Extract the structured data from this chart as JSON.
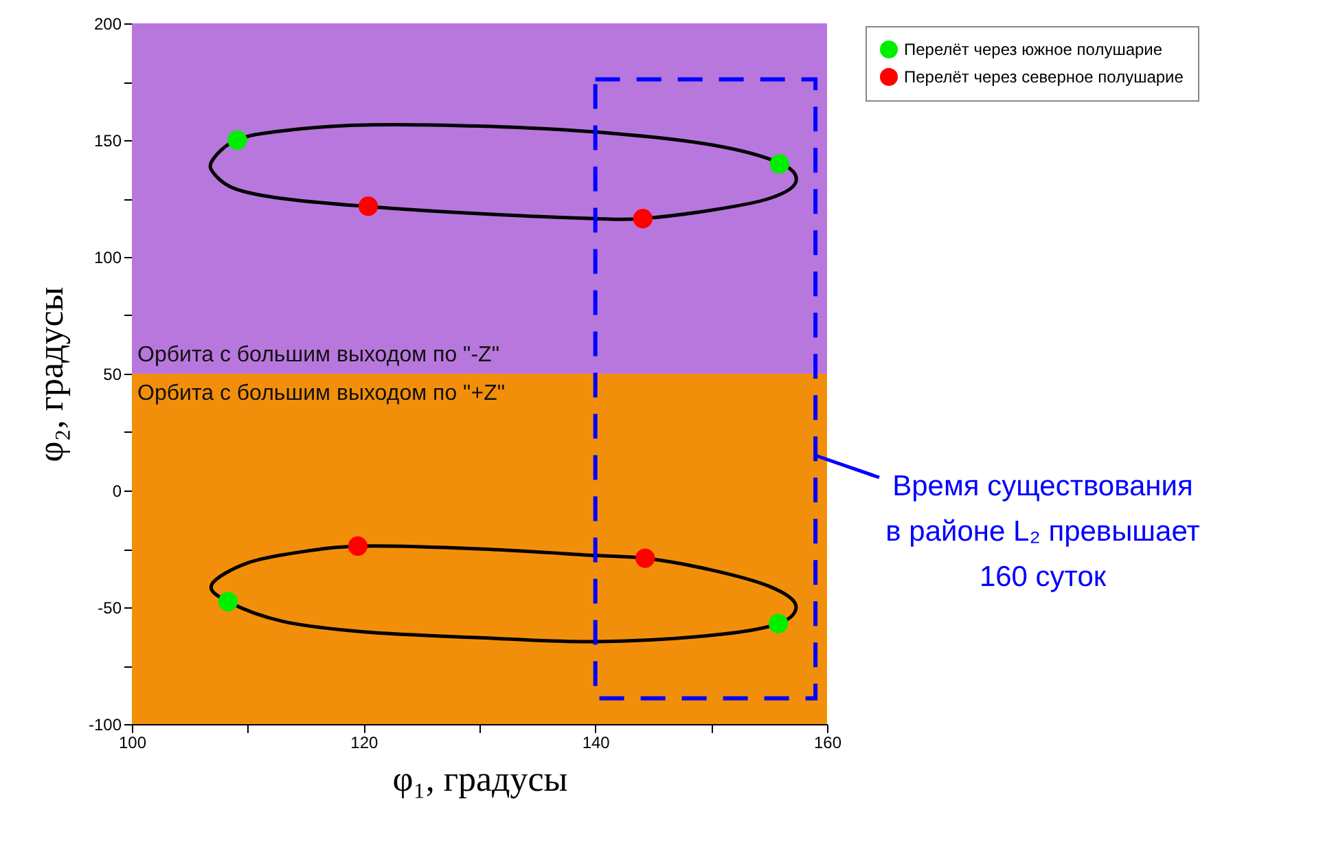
{
  "chart_data": {
    "type": "scatter",
    "xlabel": "φ₁, градусы",
    "ylabel": "φ₂, градусы",
    "xlim": [
      100,
      160
    ],
    "xticks": [
      100,
      {
        "value": 110,
        "label": null
      },
      120,
      {
        "value": 130,
        "label": null
      },
      140,
      {
        "value": 150,
        "label": null
      },
      160
    ],
    "ylim": [
      -100,
      200
    ],
    "yticks": [
      -100,
      {
        "value": -75,
        "label": null
      },
      -50,
      {
        "value": -25,
        "label": null
      },
      0,
      {
        "value": 25,
        "label": null
      },
      50,
      {
        "value": 75,
        "label": null
      },
      100,
      {
        "value": 125,
        "label": null
      },
      150,
      {
        "value": 175,
        "label": null
      },
      200
    ],
    "legend": "top right",
    "grid": false,
    "marker": "circle",
    "series": [
      {
        "name": "Перелёт через южное полушарие",
        "color": "#00ee00",
        "x": [
          109.1,
          155.9,
          108.3,
          155.8
        ],
        "values": [
          150,
          139.8,
          -47.6,
          -57
        ]
      },
      {
        "name": "Перелёт через северное полушарие",
        "color": "#ff0000",
        "x": [
          120.4,
          144.1,
          119.5,
          144.3
        ],
        "values": [
          121.7,
          116.4,
          -23.8,
          -29
        ]
      }
    ],
    "bands": [
      {
        "axis": "y",
        "from": 50,
        "to": 200,
        "label": "Орбита с большим выходом по \"-Z\"",
        "color": "#b877dd"
      },
      {
        "axis": "y",
        "from": -100,
        "to": 50,
        "label": "Орбита с большим выходом по \"+Z\"",
        "color": "#f28f0a"
      }
    ],
    "annotations": [
      "Время существования\nв районе L₂ превышает\n160 суток"
    ]
  }
}
